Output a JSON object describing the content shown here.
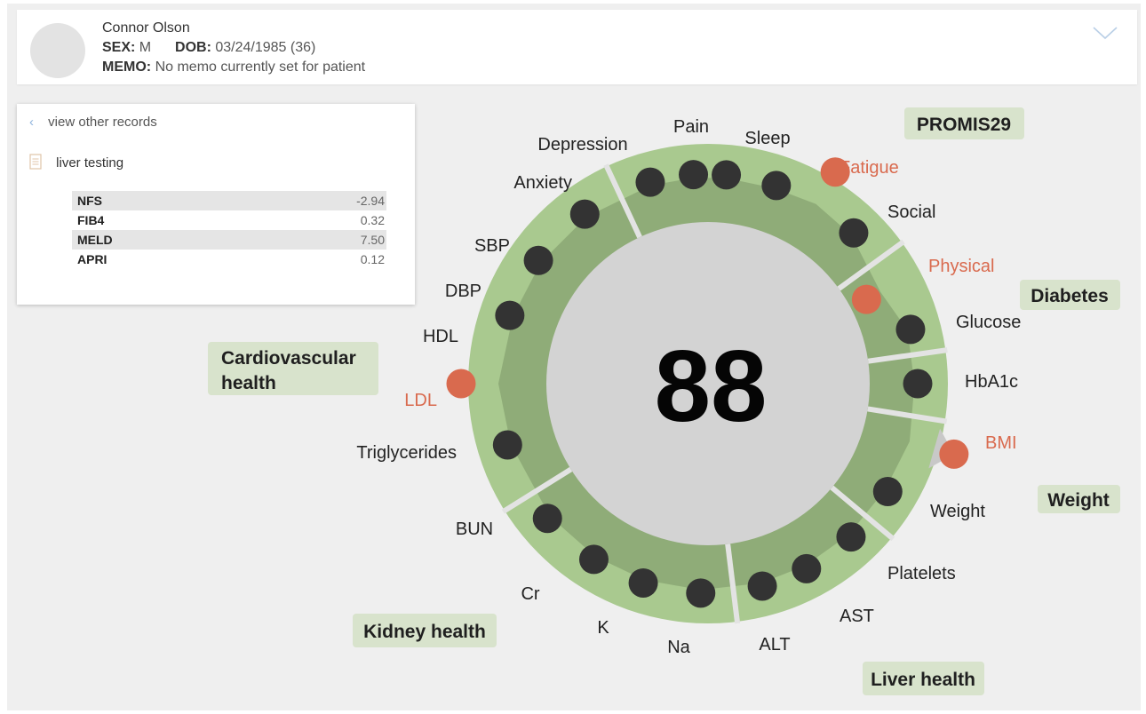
{
  "patient": {
    "name": "Connor Olson",
    "sex_label": "SEX:",
    "sex": "M",
    "dob_label": "DOB:",
    "dob": "03/24/1985 (36)",
    "memo_label": "MEMO:",
    "memo": "No memo currently set for patient"
  },
  "panel": {
    "back_label": "view other records",
    "record_label": "liver testing",
    "scores": [
      {
        "name": "NFS",
        "value": "-2.94"
      },
      {
        "name": "FIB4",
        "value": "0.32"
      },
      {
        "name": "MELD",
        "value": "7.50"
      },
      {
        "name": "APRI",
        "value": "0.12"
      }
    ]
  },
  "wheel": {
    "score": "88",
    "colors": {
      "outer_ring": "#a9c98f",
      "inner_band": "#8fac78",
      "center": "#d3d3d3",
      "normal_dot": "#333333",
      "alert_dot": "#d96a4e",
      "alert_text": "#d96a4e",
      "tag_bg": "#d8e3cc"
    },
    "groups": [
      {
        "name": "PROMIS29",
        "metrics": [
          "Fatigue",
          "Social",
          "Physical",
          "Pain",
          "Sleep",
          "Depression",
          "Anxiety"
        ]
      },
      {
        "name": "Diabetes",
        "metrics": [
          "Glucose",
          "HbA1c"
        ]
      },
      {
        "name": "Weight",
        "metrics": [
          "BMI",
          "Weight"
        ]
      },
      {
        "name": "Liver health",
        "metrics": [
          "Platelets",
          "AST",
          "ALT"
        ]
      },
      {
        "name": "Kidney health",
        "metrics": [
          "Na",
          "K",
          "Cr",
          "BUN"
        ]
      },
      {
        "name": "Cardiovascular health",
        "metrics": [
          "Triglycerides",
          "LDL",
          "HDL",
          "DBP",
          "SBP"
        ]
      }
    ],
    "metrics": [
      {
        "label": "Pain",
        "alert": false,
        "level": 0.9
      },
      {
        "label": "Sleep",
        "alert": false,
        "level": 0.9
      },
      {
        "label": "Fatigue",
        "alert": true,
        "level": 1.0
      },
      {
        "label": "Social",
        "alert": false,
        "level": 0.9
      },
      {
        "label": "Physical",
        "alert": true,
        "level": 0.55
      },
      {
        "label": "Glucose",
        "alert": false,
        "level": 0.9
      },
      {
        "label": "HbA1c",
        "alert": false,
        "level": 0.9
      },
      {
        "label": "BMI",
        "alert": true,
        "level": 1.1
      },
      {
        "label": "Weight",
        "alert": false,
        "level": 0.9
      },
      {
        "label": "Platelets",
        "alert": false,
        "level": 0.9
      },
      {
        "label": "AST",
        "alert": false,
        "level": 0.9
      },
      {
        "label": "ALT",
        "alert": false,
        "level": 0.9
      },
      {
        "label": "Na",
        "alert": false,
        "level": 0.9
      },
      {
        "label": "K",
        "alert": false,
        "level": 0.9
      },
      {
        "label": "Cr",
        "alert": false,
        "level": 0.9
      },
      {
        "label": "BUN",
        "alert": false,
        "level": 0.9
      },
      {
        "label": "Triglycerides",
        "alert": false,
        "level": 0.9
      },
      {
        "label": "LDL",
        "alert": true,
        "level": 1.0
      },
      {
        "label": "HDL",
        "alert": false,
        "level": 0.9
      },
      {
        "label": "DBP",
        "alert": false,
        "level": 0.9
      },
      {
        "label": "SBP",
        "alert": false,
        "level": 0.9
      },
      {
        "label": "Anxiety",
        "alert": false,
        "level": 0.9
      },
      {
        "label": "Depression",
        "alert": false,
        "level": 0.9
      }
    ],
    "tags": {
      "promis": "PROMIS29",
      "diabetes": "Diabetes",
      "weight": "Weight",
      "liver": "Liver health",
      "kidney": "Kidney health",
      "cardio_line1": "Cardiovascular",
      "cardio_line2": "health"
    }
  }
}
